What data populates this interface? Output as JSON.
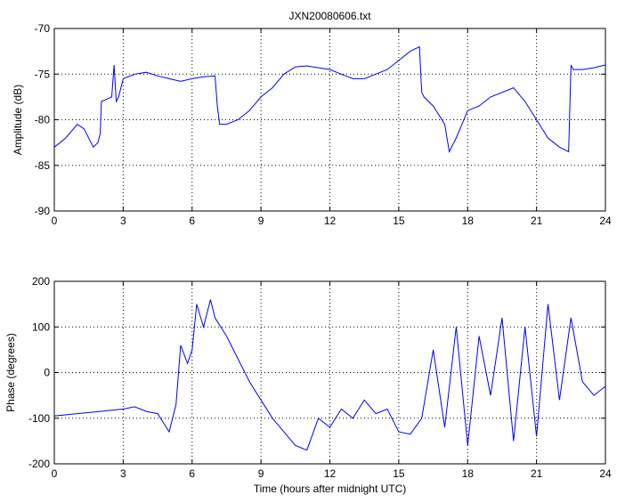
{
  "chart_data": [
    {
      "type": "line",
      "title": "JXN20080606.txt",
      "xlabel": "",
      "ylabel": "Amplitude (dB)",
      "xlim": [
        0,
        24
      ],
      "ylim": [
        -90,
        -70
      ],
      "xticks": [
        0,
        3,
        6,
        9,
        12,
        15,
        18,
        21,
        24
      ],
      "yticks": [
        -90,
        -85,
        -80,
        -75,
        -70
      ],
      "grid": true,
      "color": "#0000ff",
      "x": [
        0,
        0.5,
        1.0,
        1.3,
        1.7,
        1.9,
        2.0,
        2.05,
        2.5,
        2.6,
        2.7,
        2.8,
        3.0,
        3.5,
        4.0,
        4.5,
        5.0,
        5.5,
        6.0,
        6.5,
        7.0,
        7.1,
        7.2,
        7.5,
        8.0,
        8.5,
        9.0,
        9.5,
        10.0,
        10.5,
        11.0,
        11.5,
        12.0,
        12.5,
        13.0,
        13.5,
        14.0,
        14.5,
        15.0,
        15.5,
        15.9,
        16.0,
        16.1,
        16.5,
        17.0,
        17.2,
        17.5,
        18.0,
        18.5,
        19.0,
        19.5,
        20.0,
        20.5,
        21.0,
        21.5,
        22.0,
        22.4,
        22.5,
        22.6,
        23.0,
        23.5,
        24.0
      ],
      "y": [
        -83,
        -82,
        -80.5,
        -81,
        -83,
        -82.5,
        -81.5,
        -78,
        -77.5,
        -74,
        -78,
        -77.5,
        -75.5,
        -75,
        -74.8,
        -75.2,
        -75.5,
        -75.8,
        -75.5,
        -75.3,
        -75.2,
        -78.5,
        -80.5,
        -80.5,
        -80,
        -79,
        -77.5,
        -76.5,
        -75,
        -74.2,
        -74.1,
        -74.3,
        -74.5,
        -75,
        -75.5,
        -75.5,
        -75,
        -74.5,
        -73.5,
        -72.5,
        -72,
        -77,
        -77.5,
        -78.5,
        -80.5,
        -83.5,
        -82,
        -79,
        -78.5,
        -77.5,
        -77,
        -76.5,
        -78,
        -80,
        -82,
        -83,
        -83.5,
        -74,
        -74.5,
        -74.5,
        -74.3,
        -74
      ]
    },
    {
      "type": "line",
      "title": "",
      "xlabel": "Time (hours after midnight UTC)",
      "ylabel": "Phase (degrees)",
      "xlim": [
        0,
        24
      ],
      "ylim": [
        -200,
        200
      ],
      "xticks": [
        0,
        3,
        6,
        9,
        12,
        15,
        18,
        21,
        24
      ],
      "yticks": [
        -200,
        -100,
        0,
        100,
        200
      ],
      "grid": true,
      "color": "#0000ff",
      "x": [
        0,
        1.0,
        2.0,
        3.0,
        3.5,
        4.0,
        4.5,
        5.0,
        5.3,
        5.5,
        5.8,
        6.0,
        6.2,
        6.5,
        6.8,
        7.0,
        7.5,
        8.0,
        8.5,
        9.0,
        9.5,
        10.0,
        10.5,
        11.0,
        11.5,
        12.0,
        12.5,
        13.0,
        13.5,
        14.0,
        14.5,
        15.0,
        15.5,
        16.0,
        16.5,
        17.0,
        17.5,
        18.0,
        18.5,
        19.0,
        19.5,
        20.0,
        20.5,
        21.0,
        21.5,
        22.0,
        22.5,
        23.0,
        23.5,
        24.0
      ],
      "y": [
        -95,
        -90,
        -85,
        -80,
        -75,
        -85,
        -90,
        -130,
        -70,
        60,
        20,
        50,
        150,
        100,
        160,
        120,
        80,
        30,
        -20,
        -60,
        -100,
        -130,
        -160,
        -170,
        -100,
        -120,
        -80,
        -100,
        -60,
        -90,
        -80,
        -130,
        -135,
        -100,
        50,
        -120,
        100,
        -160,
        80,
        -50,
        120,
        -150,
        100,
        -140,
        150,
        -60,
        120,
        -20,
        -50,
        -30
      ]
    }
  ]
}
